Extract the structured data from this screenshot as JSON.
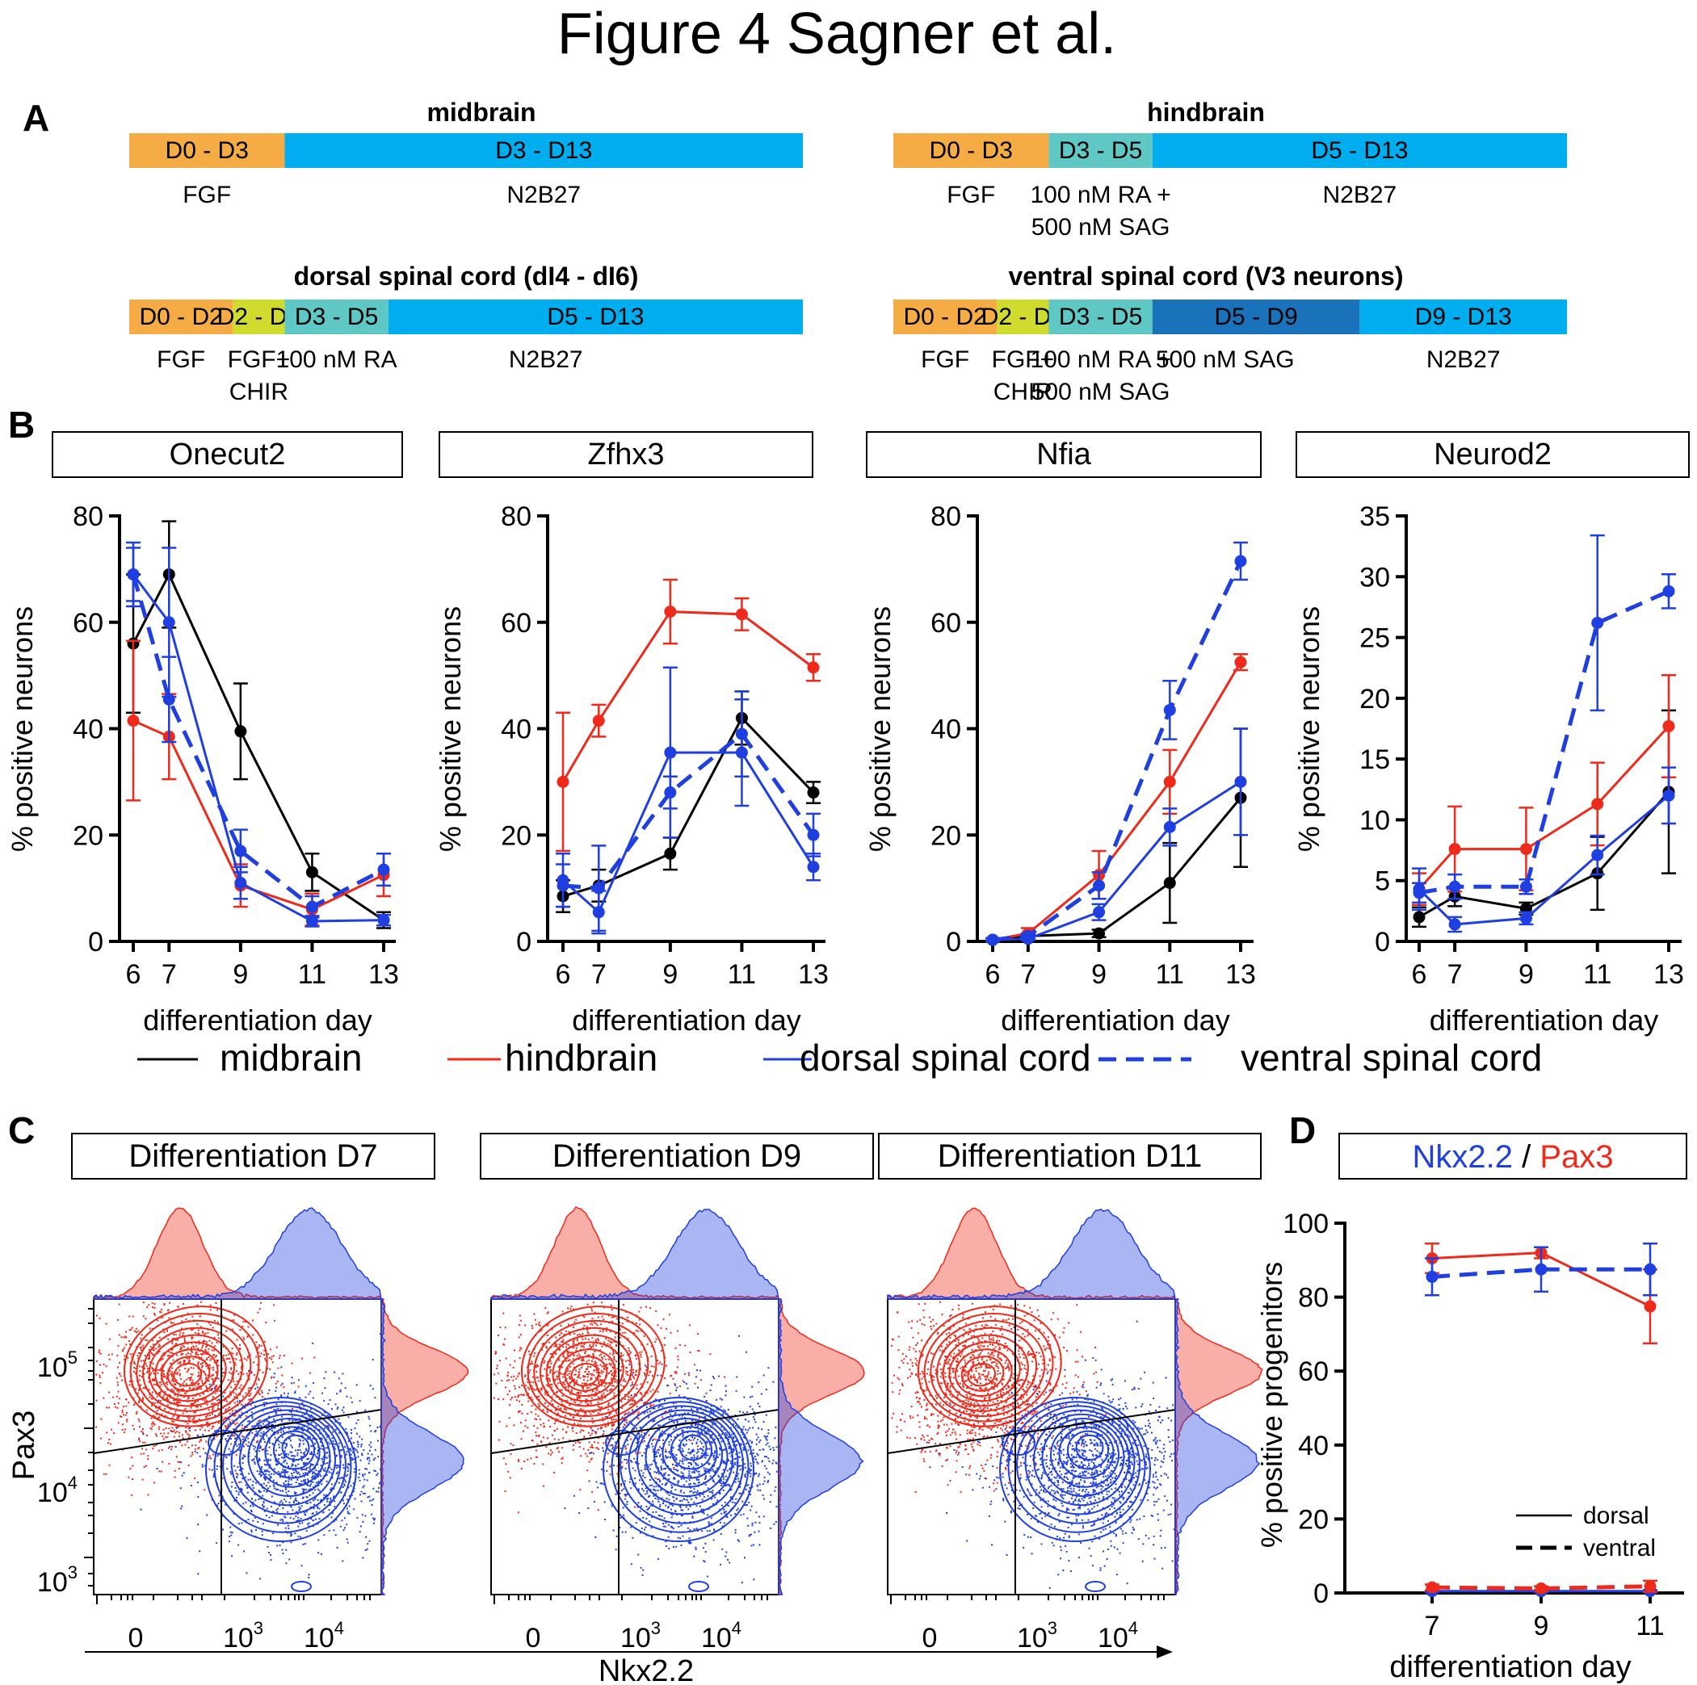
{
  "title": "Figure 4 Sagner et al.",
  "colors": {
    "black": "#000000",
    "red": "#ee2a1b",
    "blue": "#1f3fe0",
    "orange": "#f6ac45",
    "teal": "#5fc8c4",
    "cyan": "#00aeef",
    "yellow": "#cfdc2e",
    "darkblue": "#1a73ba"
  },
  "panelA": {
    "letter": "A",
    "protocols": [
      {
        "name": "midbrain",
        "segments": [
          {
            "label": "D0 - D3",
            "start": 0,
            "end": 3,
            "color": "orange"
          },
          {
            "label": "D3 - D13",
            "start": 3,
            "end": 13,
            "color": "cyan"
          }
        ],
        "media": [
          [
            "FGF"
          ],
          [
            "N2B27"
          ]
        ]
      },
      {
        "name": "hindbrain",
        "segments": [
          {
            "label": "D0 - D3",
            "start": 0,
            "end": 3,
            "color": "orange"
          },
          {
            "label": "D3 - D5",
            "start": 3,
            "end": 5,
            "color": "teal"
          },
          {
            "label": "D5 - D13",
            "start": 5,
            "end": 13,
            "color": "cyan"
          }
        ],
        "media": [
          [
            "FGF"
          ],
          [
            "100 nM RA +",
            "500 nM SAG"
          ],
          [
            "N2B27"
          ]
        ]
      },
      {
        "name": "dorsal spinal cord (dI4 - dI6)",
        "segments": [
          {
            "label": "D0 - D2",
            "start": 0,
            "end": 2,
            "color": "orange"
          },
          {
            "label": "D2 - D3",
            "start": 2,
            "end": 3,
            "color": "yellow"
          },
          {
            "label": "D3 - D5",
            "start": 3,
            "end": 5,
            "color": "teal"
          },
          {
            "label": "D5 - D13",
            "start": 5,
            "end": 13,
            "color": "cyan"
          }
        ],
        "media": [
          [
            "FGF"
          ],
          [
            "FGF+",
            "CHIR"
          ],
          [
            "100 nM RA"
          ],
          [
            "N2B27"
          ]
        ]
      },
      {
        "name": "ventral spinal cord (V3 neurons)",
        "segments": [
          {
            "label": "D0 - D2",
            "start": 0,
            "end": 2,
            "color": "orange"
          },
          {
            "label": "D2 - D3",
            "start": 2,
            "end": 3,
            "color": "yellow"
          },
          {
            "label": "D3 - D5",
            "start": 3,
            "end": 5,
            "color": "teal"
          },
          {
            "label": "D5 - D9",
            "start": 5,
            "end": 9,
            "color": "darkblue"
          },
          {
            "label": "D9 - D13",
            "start": 9,
            "end": 13,
            "color": "cyan"
          }
        ],
        "media": [
          [
            "FGF"
          ],
          [
            "FGF+",
            "CHIR"
          ],
          [
            "100 nM RA +",
            "500 nM SAG"
          ],
          [
            "500 nM SAG"
          ],
          [
            "N2B27"
          ]
        ]
      }
    ]
  },
  "panelB": {
    "letter": "B",
    "xlabel": "differentiation day",
    "ylabel": "% positive neurons",
    "legend": [
      {
        "name": "midbrain",
        "color": "black",
        "dash": false
      },
      {
        "name": "hindbrain",
        "color": "red",
        "dash": false
      },
      {
        "name": "dorsal spinal cord",
        "color": "blue",
        "dash": false
      },
      {
        "name": "ventral spinal cord",
        "color": "blue",
        "dash": true
      }
    ]
  },
  "chart_data": [
    {
      "type": "line",
      "title": "Onecut2",
      "x": [
        6,
        7,
        9,
        11,
        13
      ],
      "ylim": [
        0,
        80
      ],
      "yticks": [
        0,
        20,
        40,
        60,
        80
      ],
      "series": [
        {
          "name": "midbrain",
          "color": "black",
          "dash": false,
          "values": [
            56,
            69,
            39.5,
            13,
            4
          ],
          "err": [
            13,
            10,
            9,
            3.5,
            1.5
          ]
        },
        {
          "name": "hindbrain",
          "color": "red",
          "dash": false,
          "values": [
            41.5,
            38.5,
            10.5,
            6,
            12.5
          ],
          "err": [
            15,
            8,
            4,
            3,
            4
          ]
        },
        {
          "name": "dorsal spinal cord",
          "color": "blue",
          "dash": false,
          "values": [
            69,
            60,
            11,
            3.8,
            4
          ],
          "err": [
            5,
            14,
            3,
            1,
            1
          ]
        },
        {
          "name": "ventral spinal cord",
          "color": "blue",
          "dash": true,
          "values": [
            69,
            45.5,
            17,
            6.5,
            13.5
          ],
          "err": [
            6,
            8,
            4,
            2,
            3
          ]
        }
      ]
    },
    {
      "type": "line",
      "title": "Zfhx3",
      "x": [
        6,
        7,
        9,
        11,
        13
      ],
      "ylim": [
        0,
        80
      ],
      "yticks": [
        0,
        20,
        40,
        60,
        80
      ],
      "series": [
        {
          "name": "midbrain",
          "color": "black",
          "dash": false,
          "values": [
            8.5,
            10.5,
            16.5,
            42,
            28
          ],
          "err": [
            3,
            3,
            3,
            5,
            2
          ]
        },
        {
          "name": "hindbrain",
          "color": "red",
          "dash": false,
          "values": [
            30,
            41.5,
            62,
            61.5,
            51.5
          ],
          "err": [
            13,
            3,
            6,
            3,
            2.5
          ]
        },
        {
          "name": "dorsal spinal cord",
          "color": "blue",
          "dash": false,
          "values": [
            11.5,
            5.5,
            35.5,
            35.5,
            14
          ],
          "err": [
            5,
            4,
            16,
            10,
            2.5
          ]
        },
        {
          "name": "ventral spinal cord",
          "color": "blue",
          "dash": true,
          "values": [
            10.5,
            10,
            28,
            39,
            20
          ],
          "err": [
            4,
            8,
            3,
            8,
            4
          ]
        }
      ]
    },
    {
      "type": "line",
      "title": "Nfia",
      "x": [
        6,
        7,
        9,
        11,
        13
      ],
      "ylim": [
        0,
        80
      ],
      "yticks": [
        0,
        20,
        40,
        60,
        80
      ],
      "series": [
        {
          "name": "midbrain",
          "color": "black",
          "dash": false,
          "values": [
            0.3,
            1,
            1.5,
            11,
            27
          ],
          "err": [
            0.3,
            0.5,
            0.7,
            7.5,
            13
          ]
        },
        {
          "name": "hindbrain",
          "color": "red",
          "dash": false,
          "values": [
            0.3,
            1.5,
            12.5,
            30,
            52.5
          ],
          "err": [
            0.3,
            1,
            4.5,
            6,
            1.5
          ]
        },
        {
          "name": "dorsal spinal cord",
          "color": "blue",
          "dash": false,
          "values": [
            0.3,
            0.5,
            5.5,
            21.5,
            30
          ],
          "err": [
            0.3,
            0.3,
            1.5,
            3.5,
            10
          ]
        },
        {
          "name": "ventral spinal cord",
          "color": "blue",
          "dash": true,
          "values": [
            0.3,
            1,
            10.5,
            43.5,
            71.5
          ],
          "err": [
            0.3,
            0.5,
            2.5,
            5.5,
            3.5
          ]
        }
      ]
    },
    {
      "type": "line",
      "title": "Neurod2",
      "x": [
        6,
        7,
        9,
        11,
        13
      ],
      "ylim": [
        0,
        35
      ],
      "yticks": [
        0,
        5,
        10,
        15,
        20,
        25,
        30,
        35
      ],
      "series": [
        {
          "name": "midbrain",
          "color": "black",
          "dash": false,
          "values": [
            2,
            3.7,
            2.7,
            5.6,
            12.3
          ],
          "err": [
            0.8,
            0.8,
            0.5,
            3,
            6.7
          ]
        },
        {
          "name": "hindbrain",
          "color": "red",
          "dash": false,
          "values": [
            4.3,
            7.6,
            7.6,
            11.3,
            17.7
          ],
          "err": [
            1.3,
            3.5,
            3.4,
            3.4,
            4.2
          ]
        },
        {
          "name": "dorsal spinal cord",
          "color": "blue",
          "dash": false,
          "values": [
            4.3,
            1.4,
            1.9,
            7.1,
            12
          ],
          "err": [
            1.7,
            0.6,
            0.5,
            1.6,
            2.3
          ]
        },
        {
          "name": "ventral spinal cord",
          "color": "blue",
          "dash": true,
          "values": [
            4,
            4.5,
            4.5,
            26.2,
            28.8
          ],
          "err": [
            0.8,
            1,
            0.6,
            7.2,
            1.4
          ]
        }
      ]
    },
    {
      "type": "line",
      "title": "Nkx2.2 / Pax3",
      "xlabel": "differentiation day",
      "ylabel": "% positive progenitors",
      "x": [
        7,
        9,
        11
      ],
      "ylim": [
        0,
        100
      ],
      "yticks": [
        0,
        20,
        40,
        60,
        80,
        100
      ],
      "series": [
        {
          "name": "Pax3 dorsal",
          "color": "red",
          "dash": false,
          "values": [
            90.5,
            92,
            77.5
          ],
          "err": [
            4,
            1.5,
            10
          ]
        },
        {
          "name": "Nkx2.2 ventral",
          "color": "blue",
          "dash": true,
          "values": [
            85.5,
            87.5,
            87.5
          ],
          "err": [
            5,
            6,
            7
          ]
        },
        {
          "name": "Nkx2.2 dorsal",
          "color": "blue",
          "dash": false,
          "values": [
            0.5,
            0.5,
            0.5
          ],
          "err": [
            0.3,
            0.3,
            0.3
          ]
        },
        {
          "name": "Pax3 ventral",
          "color": "red",
          "dash": true,
          "values": [
            1.5,
            1.2,
            1.8
          ],
          "err": [
            0.8,
            0.6,
            1.5
          ]
        }
      ]
    }
  ],
  "panelC": {
    "letter": "C",
    "panels": [
      "Differentiation D7",
      "Differentiation D9",
      "Differentiation D11"
    ],
    "xaxis_label": "Nkx2.2",
    "yaxis_label": "Pax3",
    "xticks": [
      {
        "base": "0",
        "exp": ""
      },
      {
        "base": "10",
        "exp": "3"
      },
      {
        "base": "10",
        "exp": "4"
      }
    ],
    "yticks": [
      {
        "base": "10",
        "exp": "5"
      },
      {
        "base": "10",
        "exp": "4"
      },
      {
        "base": "10",
        "exp": "3"
      }
    ]
  },
  "panelD": {
    "letter": "D",
    "title_a": "Nkx2.2",
    "title_sep": " / ",
    "title_b": "Pax3",
    "legend": [
      {
        "name": "dorsal",
        "dash": false
      },
      {
        "name": "ventral",
        "dash": true
      }
    ]
  }
}
